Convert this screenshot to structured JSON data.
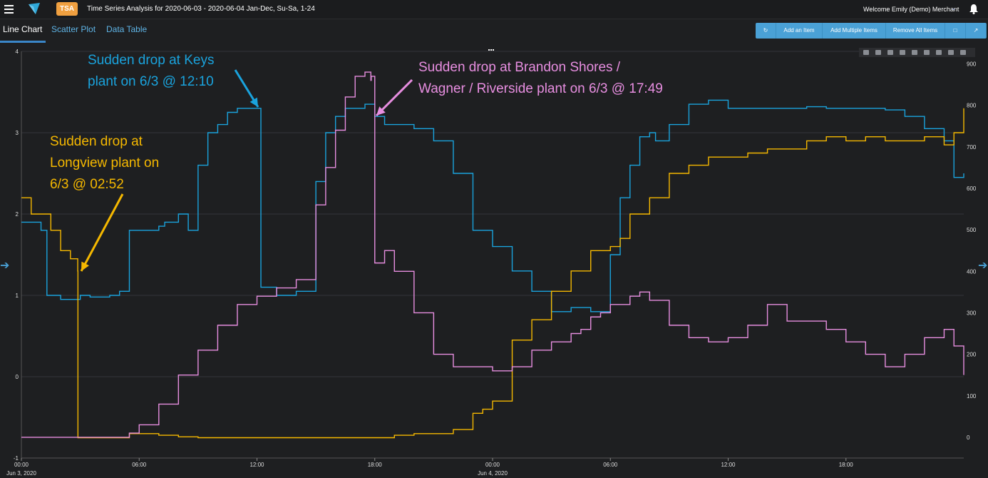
{
  "header": {
    "app_badge": "TSA",
    "title": "Time Series Analysis for 2020-06-03 - 2020-06-04 Jan-Dec, Su-Sa, 1-24",
    "welcome": "Welcome Emily (Demo) Merchant"
  },
  "tabs": [
    {
      "label": "Line Chart",
      "active": true
    },
    {
      "label": "Scatter Plot",
      "active": false
    },
    {
      "label": "Data Table",
      "active": false
    }
  ],
  "toolbar": {
    "add_item": "Add an Item",
    "add_multiple": "Add Multiple Items",
    "remove_all": "Remove All Items"
  },
  "icons": [
    "menu-icon",
    "logo-icon",
    "bell-icon",
    "refresh-icon",
    "document-icon",
    "expand-icon",
    "camera-icon",
    "zoom-icon",
    "pan-icon",
    "zoom-in-icon",
    "zoom-out-icon",
    "autoscale-icon",
    "reset-axes-icon",
    "spike-lines-icon",
    "plotly-logo-icon",
    "left-arrow-icon",
    "right-arrow-icon"
  ],
  "colors": {
    "accent": "#4aa1d6",
    "badge": "#f0a040",
    "series_blue": "#1aa3dd",
    "series_yellow": "#f5b800",
    "series_pink": "#e78ee0"
  },
  "annotations": {
    "keys": [
      "Sudden drop at Keys",
      "plant on 6/3 @ 12:10"
    ],
    "brandon": [
      "Sudden drop at Brandon Shores /",
      "Wagner / Riverside plant on 6/3 @ 17:49"
    ],
    "longview": [
      "Sudden drop at",
      "Longview plant on",
      "6/3 @ 02:52"
    ]
  },
  "chart_data": {
    "type": "line",
    "x_tick_labels": [
      "00:00",
      "06:00",
      "12:00",
      "18:00",
      "00:00",
      "06:00",
      "12:00",
      "18:00"
    ],
    "x_date_labels": [
      "Jun 3, 2020",
      "Jun 4, 2020"
    ],
    "y_left": {
      "ticks": [
        "-1",
        "0",
        "1",
        "2",
        "3",
        "4"
      ],
      "range": [
        -1,
        4
      ]
    },
    "y_right": {
      "ticks": [
        "0",
        "100",
        "200",
        "300",
        "400",
        "500",
        "600",
        "700",
        "800",
        "900"
      ],
      "range": [
        -50,
        930
      ]
    },
    "grid": true,
    "legend": "none",
    "series": [
      {
        "axis": "left",
        "color": "#1aa3dd",
        "x": [
          0,
          1,
          1.3,
          2,
          3,
          3.5,
          4.5,
          5,
          5.5,
          6,
          7,
          7.3,
          8,
          8.5,
          9,
          9.5,
          10,
          10.5,
          11,
          11.5,
          12,
          12.17,
          12.2,
          13,
          14,
          15,
          15.5,
          16,
          16.5,
          17,
          17.5,
          18,
          18.5,
          19,
          20,
          21,
          22,
          23,
          24,
          25,
          26,
          27,
          28,
          29,
          29.5,
          30,
          30.5,
          31,
          31.5,
          32,
          32.3,
          33,
          34,
          35,
          36,
          37,
          38,
          39,
          40,
          41,
          42,
          43,
          44,
          45,
          46,
          47,
          47.5,
          48
        ],
        "y": [
          1.9,
          1.8,
          1.0,
          0.95,
          1.0,
          0.98,
          1.0,
          1.05,
          1.8,
          1.8,
          1.85,
          1.9,
          2.0,
          1.8,
          2.6,
          3.0,
          3.1,
          3.25,
          3.3,
          3.3,
          3.3,
          3.3,
          1.1,
          1.0,
          1.05,
          2.4,
          3.0,
          3.2,
          3.3,
          3.3,
          3.35,
          3.2,
          3.1,
          3.1,
          3.05,
          2.9,
          2.5,
          1.8,
          1.6,
          1.3,
          1.05,
          0.8,
          0.85,
          0.8,
          0.8,
          1.5,
          2.2,
          2.6,
          2.95,
          3.0,
          2.9,
          3.1,
          3.35,
          3.4,
          3.3,
          3.3,
          3.3,
          3.3,
          3.32,
          3.3,
          3.3,
          3.3,
          3.28,
          3.2,
          3.05,
          2.9,
          2.45,
          2.5
        ]
      },
      {
        "axis": "left",
        "color": "#f5b800",
        "x": [
          0,
          0.5,
          1,
          1.5,
          2,
          2.5,
          2.87,
          2.88,
          3,
          4,
          5,
          5.5,
          6,
          7,
          8,
          9,
          10,
          11,
          12,
          13,
          14,
          15,
          16,
          17,
          18,
          19,
          20,
          21,
          22,
          23,
          23.5,
          24,
          25,
          26,
          27,
          28,
          29,
          30,
          30.5,
          31,
          32,
          33,
          34,
          35,
          36,
          37,
          38,
          39,
          40,
          41,
          42,
          43,
          44,
          45,
          46,
          47,
          47.5,
          48
        ],
        "y": [
          2.2,
          2.0,
          2.0,
          1.8,
          1.55,
          1.45,
          1.3,
          -0.75,
          -0.75,
          -0.75,
          -0.75,
          -0.7,
          -0.7,
          -0.72,
          -0.74,
          -0.75,
          -0.75,
          -0.75,
          -0.75,
          -0.75,
          -0.75,
          -0.75,
          -0.75,
          -0.75,
          -0.75,
          -0.72,
          -0.7,
          -0.7,
          -0.65,
          -0.45,
          -0.4,
          -0.3,
          0.45,
          0.7,
          1.05,
          1.3,
          1.55,
          1.6,
          1.7,
          2.0,
          2.2,
          2.5,
          2.6,
          2.7,
          2.7,
          2.75,
          2.8,
          2.8,
          2.9,
          2.95,
          2.9,
          2.95,
          2.9,
          2.9,
          2.95,
          2.85,
          3.0,
          3.3
        ]
      },
      {
        "axis": "right",
        "color": "#e78ee0",
        "x": [
          0,
          1,
          2,
          3,
          4,
          5,
          5.5,
          6,
          7,
          8,
          9,
          10,
          11,
          12,
          13,
          14,
          15,
          15.5,
          16,
          16.5,
          17,
          17.5,
          17.8,
          17.82,
          18,
          18.5,
          19,
          20,
          21,
          22,
          23,
          24,
          25,
          26,
          27,
          28,
          28.5,
          29,
          29.5,
          30,
          31,
          31.5,
          32,
          33,
          34,
          35,
          36,
          37,
          38,
          39,
          40,
          41,
          42,
          43,
          44,
          45,
          46,
          47,
          47.5,
          48
        ],
        "y": [
          0,
          0,
          0,
          0,
          0,
          0,
          10,
          30,
          80,
          150,
          210,
          270,
          320,
          340,
          360,
          380,
          560,
          650,
          740,
          820,
          870,
          880,
          860,
          870,
          420,
          450,
          400,
          300,
          200,
          170,
          170,
          160,
          170,
          210,
          230,
          250,
          260,
          290,
          300,
          320,
          340,
          350,
          330,
          270,
          240,
          230,
          240,
          270,
          320,
          280,
          280,
          260,
          230,
          200,
          170,
          200,
          240,
          260,
          220,
          150
        ]
      }
    ]
  }
}
